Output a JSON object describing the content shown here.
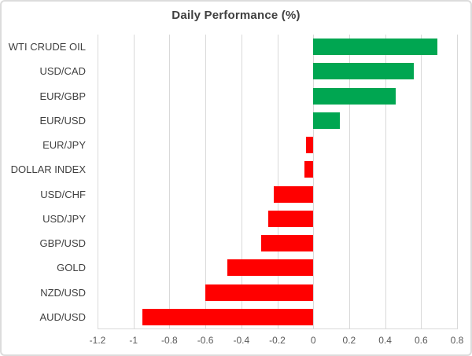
{
  "chart": {
    "title": "Daily Performance (%)"
  },
  "chart_data": {
    "type": "bar",
    "orientation": "horizontal",
    "title": "Daily Performance (%)",
    "categories": [
      "WTI CRUDE OIL",
      "USD/CAD",
      "EUR/GBP",
      "EUR/USD",
      "EUR/JPY",
      "DOLLAR INDEX",
      "USD/CHF",
      "USD/JPY",
      "GBP/USD",
      "GOLD",
      "NZD/USD",
      "AUD/USD"
    ],
    "values": [
      0.69,
      0.56,
      0.46,
      0.15,
      -0.04,
      -0.05,
      -0.22,
      -0.25,
      -0.29,
      -0.48,
      -0.6,
      -0.95
    ],
    "xlabel": "",
    "ylabel": "",
    "xlim": [
      -1.2,
      0.8
    ],
    "xticks": [
      -1.2,
      -1,
      -0.8,
      -0.6,
      -0.4,
      -0.2,
      0,
      0.2,
      0.4,
      0.6,
      0.8
    ],
    "xtick_labels": [
      "-1.2",
      "-1",
      "-0.8",
      "-0.6",
      "-0.4",
      "-0.2",
      "0",
      "0.2",
      "0.4",
      "0.6",
      "0.8"
    ],
    "grid": true,
    "legend": false,
    "positive_color": "#00a651",
    "negative_color": "#ff0000",
    "gridline_color": "#d9d9d9"
  }
}
